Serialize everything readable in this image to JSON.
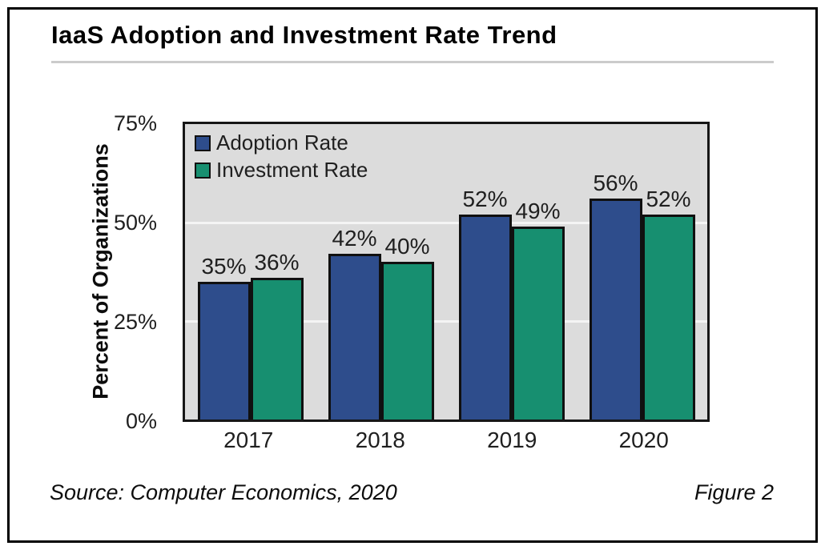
{
  "figure": {
    "title": "IaaS Adoption and Investment Rate Trend",
    "source": "Source: Computer Economics, 2020",
    "figure_label": "Figure 2"
  },
  "chart_data": {
    "type": "bar",
    "title": "IaaS Adoption and Investment Rate Trend",
    "categories": [
      "2017",
      "2018",
      "2019",
      "2020"
    ],
    "series": [
      {
        "name": "Adoption Rate",
        "color": "#2e4d8c",
        "values": [
          35,
          42,
          52,
          56
        ]
      },
      {
        "name": "Investment Rate",
        "color": "#178f70",
        "values": [
          36,
          40,
          49,
          52
        ]
      }
    ],
    "xlabel": "",
    "ylabel": "Percent of Organizations",
    "ylim": [
      0,
      75
    ],
    "yticks": [
      {
        "label": "0%",
        "value": 0
      },
      {
        "label": "25%",
        "value": 25
      },
      {
        "label": "50%",
        "value": 50
      },
      {
        "label": "75%",
        "value": 75
      }
    ],
    "gridline_values": [
      25,
      50
    ],
    "grid": true,
    "legend_position": "top-left",
    "value_label_format": "{v}%",
    "plot_bg": "#dcdcdc",
    "gridline_color": "#f4f4f4"
  }
}
